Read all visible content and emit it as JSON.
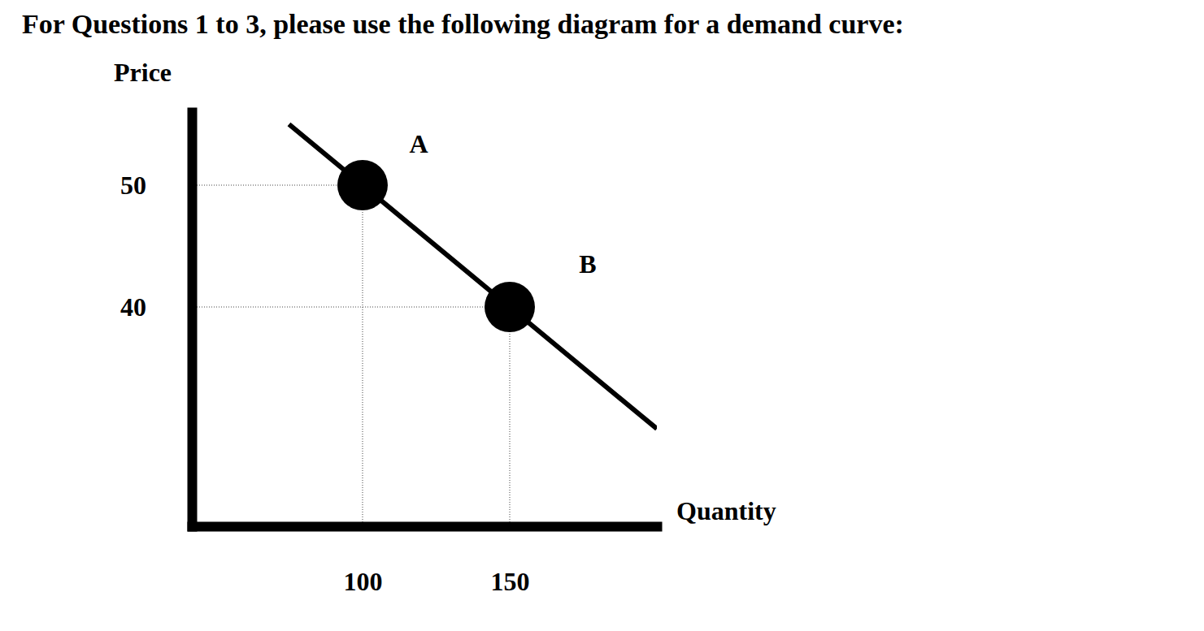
{
  "chart_data": {
    "type": "line",
    "title": "For Questions 1 to 3, please use the following diagram for a demand curve:",
    "y_label": "Price",
    "x_label": "Quantity",
    "xlim": [
      42,
      200
    ],
    "ylim": [
      22,
      56
    ],
    "xticks": [
      100,
      150
    ],
    "yticks": [
      40,
      50
    ],
    "grid": false,
    "series": [
      {
        "type": "line",
        "color": "#000000",
        "x": [
          75,
          100,
          150,
          200
        ],
        "values": [
          55,
          50,
          40,
          30
        ]
      }
    ],
    "points": {
      "type": "scatter",
      "labels": [
        "A",
        "B"
      ],
      "x": [
        100,
        150
      ],
      "values": [
        50,
        40
      ],
      "color": "#000000",
      "marker": "circle"
    }
  }
}
